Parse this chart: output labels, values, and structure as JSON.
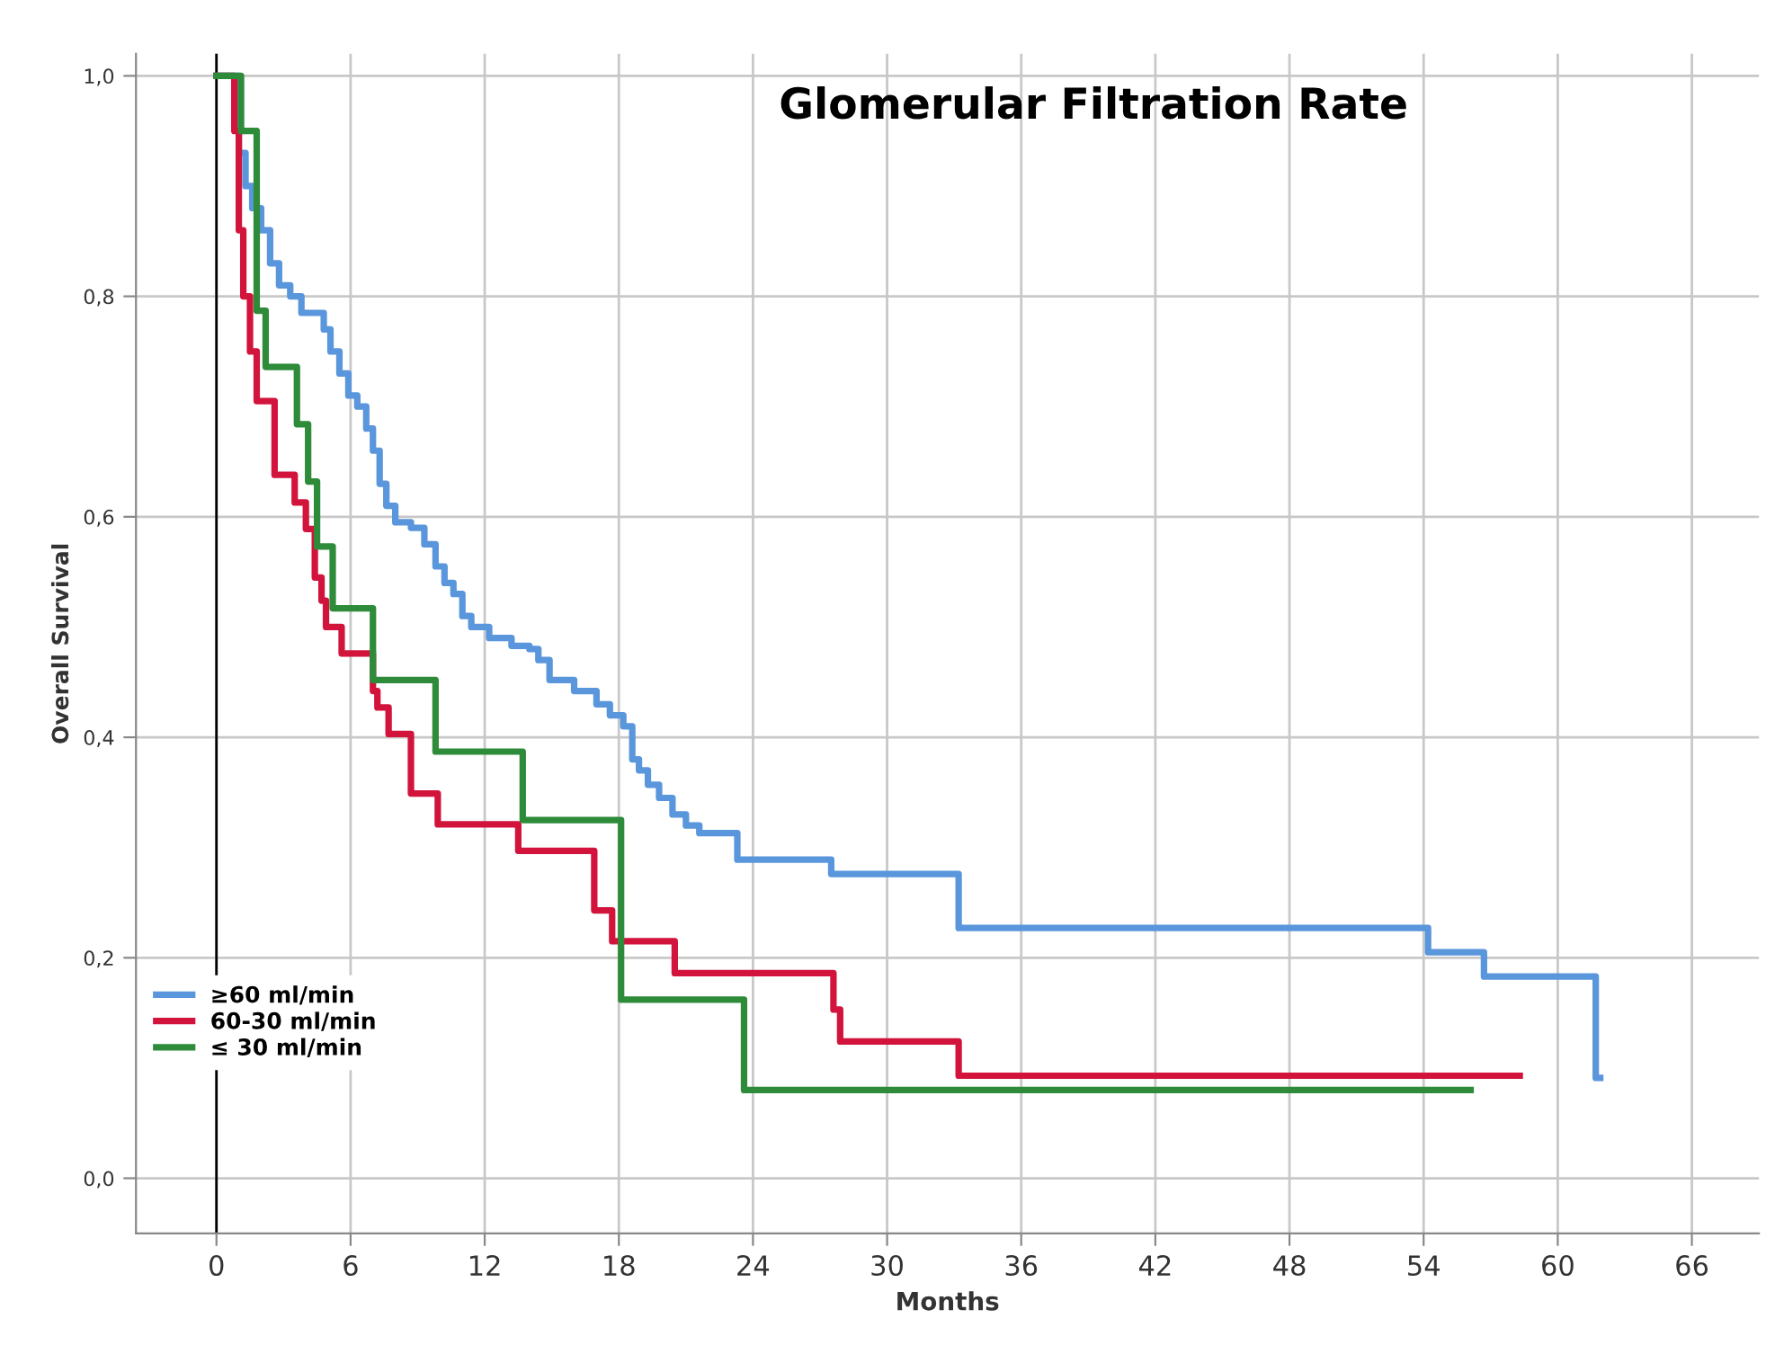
{
  "chart_data": {
    "type": "step",
    "title": "Glomerular Filtration Rate",
    "xlabel": "Months",
    "ylabel": "Overall Survival",
    "xlim": [
      -3.6,
      69
    ],
    "ylim": [
      -0.05,
      1.02
    ],
    "xticks": [
      0,
      6,
      12,
      18,
      24,
      30,
      36,
      42,
      48,
      54,
      60,
      66
    ],
    "yticks": [
      {
        "value": 0,
        "label": "0,0"
      },
      {
        "value": 0.2,
        "label": "0,2"
      },
      {
        "value": 0.4,
        "label": "0,4"
      },
      {
        "value": 0.6,
        "label": "0,6"
      },
      {
        "value": 0.8,
        "label": "0,8"
      },
      {
        "value": 1.0,
        "label": "1,0"
      }
    ],
    "grid": true,
    "legend": "bottom left",
    "marker": "none",
    "line_style": "solid",
    "ref_lines": [
      {
        "axis": "x",
        "value": 0,
        "color": "#000000"
      }
    ],
    "series": [
      {
        "name": "≥60 ml/min",
        "color": "#5a96dc",
        "x": [
          0,
          1.0,
          1.3,
          1.6,
          2.0,
          2.4,
          2.8,
          3.3,
          3.8,
          4.8,
          5.1,
          5.5,
          5.9,
          6.3,
          6.7,
          7.0,
          7.3,
          7.6,
          8.0,
          8.7,
          9.3,
          9.8,
          10.2,
          10.6,
          11.0,
          11.4,
          12.2,
          13.2,
          14.0,
          14.4,
          14.9,
          16.0,
          17.0,
          17.6,
          18.2,
          18.6,
          18.9,
          19.3,
          19.8,
          20.4,
          21.0,
          21.6,
          23.3,
          27.5,
          33.2,
          54.2,
          56.7,
          61.7,
          61.9
        ],
        "values": [
          1.0,
          0.93,
          0.9,
          0.88,
          0.86,
          0.83,
          0.81,
          0.8,
          0.785,
          0.77,
          0.75,
          0.73,
          0.71,
          0.7,
          0.68,
          0.66,
          0.63,
          0.61,
          0.595,
          0.59,
          0.575,
          0.555,
          0.54,
          0.53,
          0.51,
          0.5,
          0.49,
          0.483,
          0.48,
          0.47,
          0.452,
          0.442,
          0.43,
          0.42,
          0.41,
          0.38,
          0.37,
          0.357,
          0.345,
          0.33,
          0.32,
          0.313,
          0.289,
          0.276,
          0.227,
          0.205,
          0.183,
          0.091,
          0.091
        ]
      },
      {
        "name": "60-30 ml/min",
        "color": "#d2143c",
        "x": [
          0,
          0.8,
          1.0,
          1.2,
          1.5,
          1.8,
          2.6,
          3.5,
          4.0,
          4.4,
          4.7,
          4.9,
          5.6,
          7.0,
          7.2,
          7.7,
          8.7,
          9.9,
          13.5,
          16.9,
          17.7,
          20.5,
          27.6,
          27.9,
          33.2,
          58.3
        ],
        "values": [
          1.0,
          0.95,
          0.86,
          0.8,
          0.75,
          0.705,
          0.638,
          0.613,
          0.589,
          0.545,
          0.524,
          0.5,
          0.476,
          0.442,
          0.427,
          0.403,
          0.349,
          0.321,
          0.297,
          0.243,
          0.215,
          0.186,
          0.153,
          0.124,
          0.093,
          0.093
        ]
      },
      {
        "name": "≤ 30 ml/min",
        "color": "#2e8b3a",
        "x": [
          0,
          1.1,
          1.8,
          2.2,
          3.6,
          4.1,
          4.5,
          5.2,
          7.0,
          9.8,
          13.7,
          18.1,
          23.6,
          56.1
        ],
        "values": [
          1.0,
          0.95,
          0.787,
          0.736,
          0.684,
          0.632,
          0.573,
          0.517,
          0.452,
          0.387,
          0.325,
          0.162,
          0.08,
          0.08
        ]
      }
    ]
  }
}
